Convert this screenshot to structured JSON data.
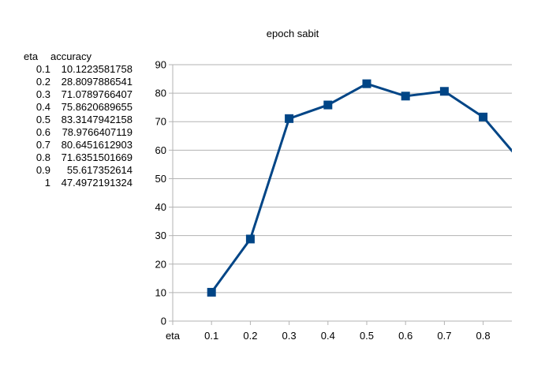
{
  "table": {
    "headers": [
      "eta",
      "accuracy"
    ],
    "rows": [
      [
        "0.1",
        "10.1223581758"
      ],
      [
        "0.2",
        "28.8097886541"
      ],
      [
        "0.3",
        "71.0789766407"
      ],
      [
        "0.4",
        "75.8620689655"
      ],
      [
        "0.5",
        "83.3147942158"
      ],
      [
        "0.6",
        "78.9766407119"
      ],
      [
        "0.7",
        "80.6451612903"
      ],
      [
        "0.8",
        "71.6351501669"
      ],
      [
        "0.9",
        "55.617352614"
      ],
      [
        "1",
        "47.4972191324"
      ]
    ]
  },
  "chart_data": {
    "type": "line",
    "title": "epoch sabit",
    "x_ticks": [
      "eta",
      "0.1",
      "0.2",
      "0.3",
      "0.4",
      "0.5",
      "0.6",
      "0.7",
      "0.8"
    ],
    "x": [
      0.1,
      0.2,
      0.3,
      0.4,
      0.5,
      0.6,
      0.7,
      0.8,
      0.9,
      1
    ],
    "series": [
      {
        "values": [
          10.1223581758,
          28.8097886541,
          71.0789766407,
          75.8620689655,
          83.3147942158,
          78.9766407119,
          80.6451612903,
          71.6351501669,
          55.617352614,
          47.4972191324
        ]
      }
    ],
    "ylim": [
      0,
      90
    ],
    "y_ticks": [
      "0",
      "10",
      "20",
      "30",
      "40",
      "50",
      "60",
      "70",
      "80",
      "90"
    ],
    "grid": true,
    "line_color": "#004586"
  }
}
